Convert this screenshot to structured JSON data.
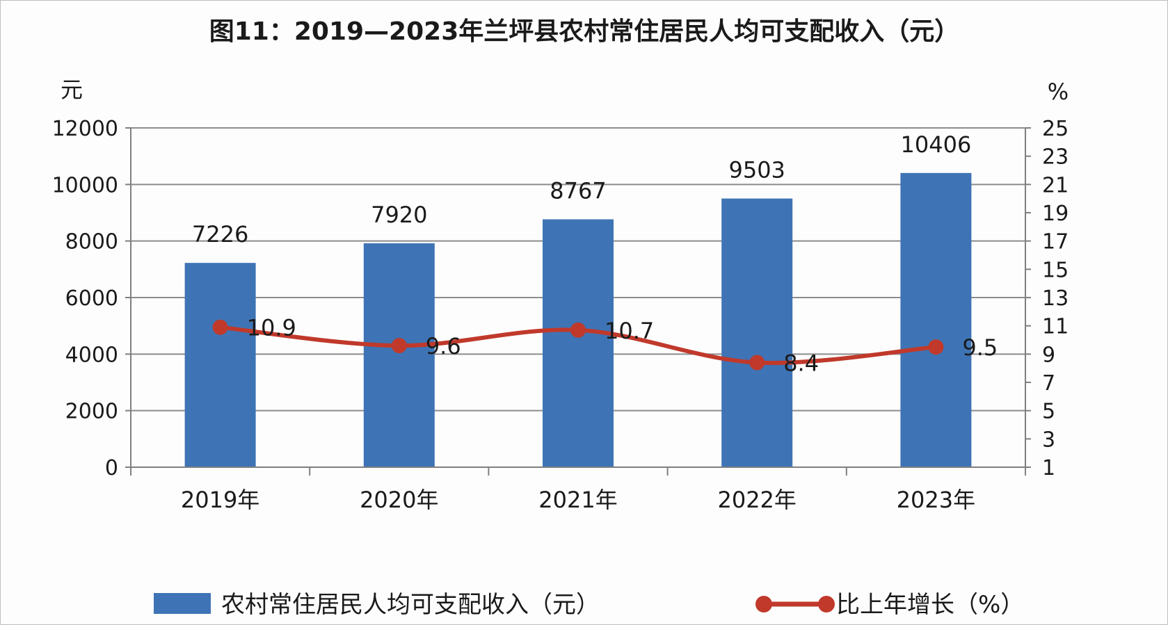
{
  "chart_data": {
    "type": "bar",
    "title": "图11：2019—2023年兰坪县农村常住居民人均可支配收入（元）",
    "categories": [
      "2019年",
      "2020年",
      "2021年",
      "2022年",
      "2023年"
    ],
    "series": [
      {
        "name": "农村常住居民人均可支配收入（元）",
        "type": "bar",
        "axis": "left",
        "values": [
          7226,
          7920,
          8767,
          9503,
          10406
        ],
        "color": "#3e74b5"
      },
      {
        "name": "比上年增长（%）",
        "type": "line",
        "axis": "right",
        "values": [
          10.9,
          9.6,
          10.7,
          8.4,
          9.5
        ],
        "color": "#c0392b"
      }
    ],
    "y_left": {
      "label": "元",
      "ylim": [
        0,
        12000
      ],
      "ticks": [
        0,
        2000,
        4000,
        6000,
        8000,
        10000,
        12000
      ]
    },
    "y_right": {
      "label": "%",
      "ylim": [
        1,
        25
      ],
      "ticks": [
        1,
        3,
        5,
        7,
        9,
        11,
        13,
        15,
        17,
        19,
        21,
        23,
        25
      ]
    },
    "grid": true,
    "legend": "bottom"
  }
}
